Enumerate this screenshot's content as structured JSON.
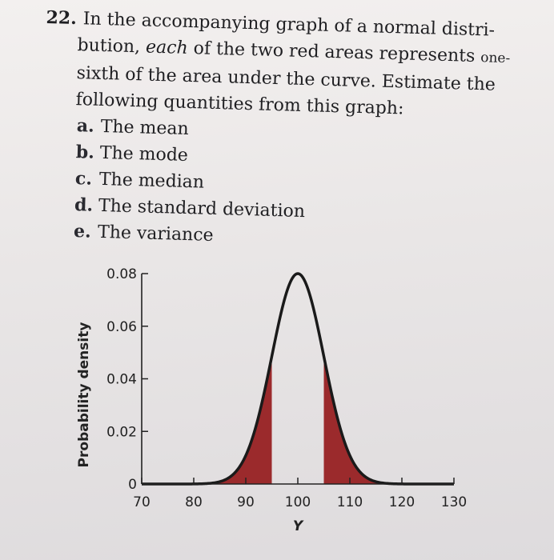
{
  "problem": {
    "number": "22.",
    "line1": "In the accompanying graph of a normal distri-",
    "line2_pre": "bution, ",
    "line2_em": "each",
    "line2_post": " of the two red areas represents ",
    "line2_small": "one-",
    "line3": "sixth of the area under the curve. Estimate the",
    "line4": "following quantities from this graph:",
    "items": [
      {
        "label": "a.",
        "text": "The mean"
      },
      {
        "label": "b.",
        "text": "The mode"
      },
      {
        "label": "c.",
        "text": "The median"
      },
      {
        "label": "d.",
        "text": "The standard deviation"
      },
      {
        "label": "e.",
        "text": "The variance"
      }
    ]
  },
  "chart_data": {
    "type": "area",
    "xlabel": "Y",
    "ylabel": "Probability density",
    "xlim": [
      70,
      130
    ],
    "ylim": [
      0,
      0.08
    ],
    "x_ticks": [
      70,
      80,
      90,
      100,
      110,
      120,
      130
    ],
    "y_ticks": [
      0,
      0.02,
      0.04,
      0.06,
      0.08
    ],
    "y_tick_labels": [
      "0",
      "0.02",
      "0.04",
      "0.06",
      "0.08"
    ],
    "series": [
      {
        "mean": 100,
        "sd": 5,
        "peak": 0.08
      }
    ],
    "shaded_regions": [
      {
        "from": 70,
        "to": 95
      },
      {
        "from": 105,
        "to": 130
      }
    ],
    "colors": {
      "curve": "#1a1a1a",
      "shade": "#9b2a2c",
      "axis": "#222222"
    }
  }
}
